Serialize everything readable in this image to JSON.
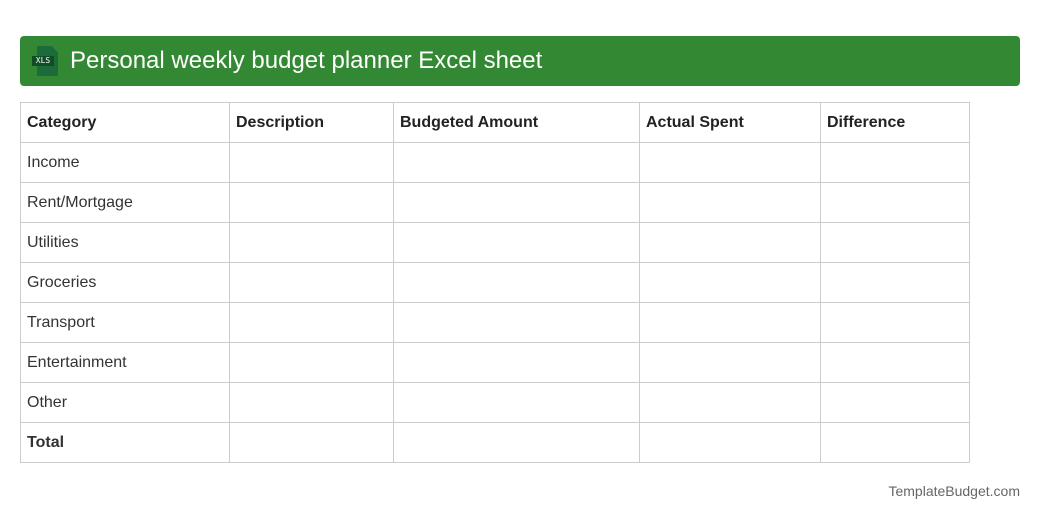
{
  "header": {
    "title": "Personal weekly budget planner Excel sheet",
    "icon": "xls-file-icon",
    "icon_label": "XLS",
    "color": "#338833"
  },
  "table": {
    "columns": [
      "Category",
      "Description",
      "Budgeted Amount",
      "Actual Spent",
      "Difference"
    ],
    "rows": [
      "Income",
      "Rent/Mortgage",
      "Utilities",
      "Groceries",
      "Transport",
      "Entertainment",
      "Other",
      "Total"
    ]
  },
  "footer": {
    "brand": "TemplateBudget.com"
  }
}
